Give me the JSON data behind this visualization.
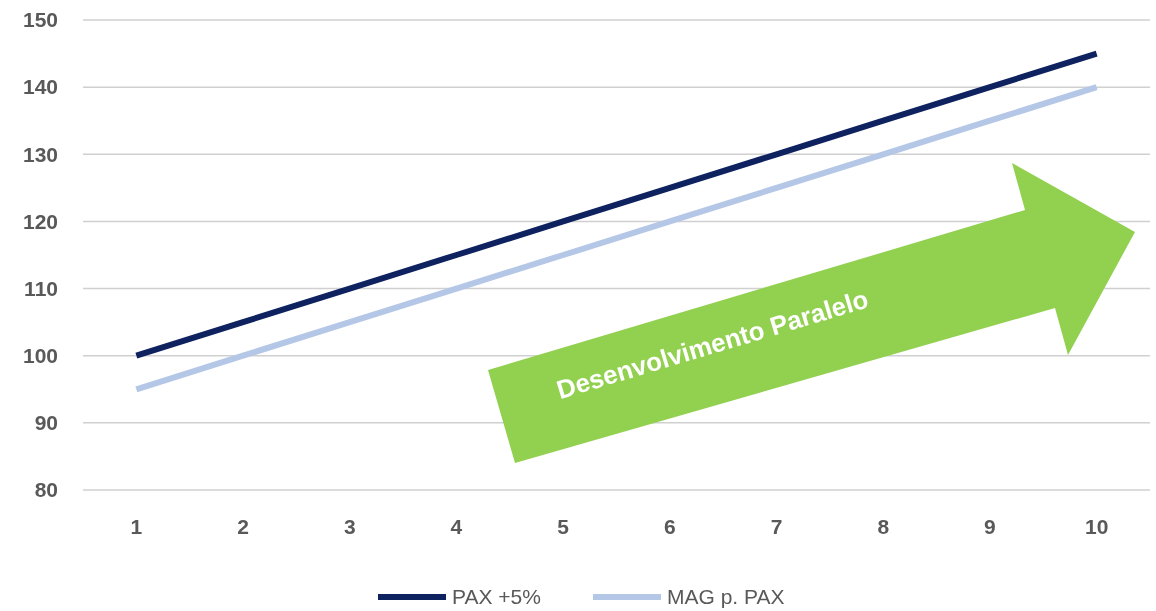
{
  "chart_data": {
    "type": "line",
    "categories": [
      "1",
      "2",
      "3",
      "4",
      "5",
      "6",
      "7",
      "8",
      "9",
      "10"
    ],
    "series": [
      {
        "name": "PAX +5%",
        "color": "#0e2260",
        "values": [
          100,
          105,
          110,
          115,
          120,
          125,
          130,
          135,
          140,
          145
        ]
      },
      {
        "name": "MAG p. PAX",
        "color": "#b4c7e7",
        "values": [
          95,
          100,
          105,
          110,
          115,
          120,
          125,
          130,
          135,
          140
        ]
      }
    ],
    "ylim": [
      80,
      150
    ],
    "yticks": [
      80,
      90,
      100,
      110,
      120,
      130,
      140,
      150
    ],
    "grid": "y",
    "legend": "bottom",
    "marker": "none",
    "line_style": "solid",
    "annotations": [
      "Desenvolvimento Paralelo"
    ]
  }
}
